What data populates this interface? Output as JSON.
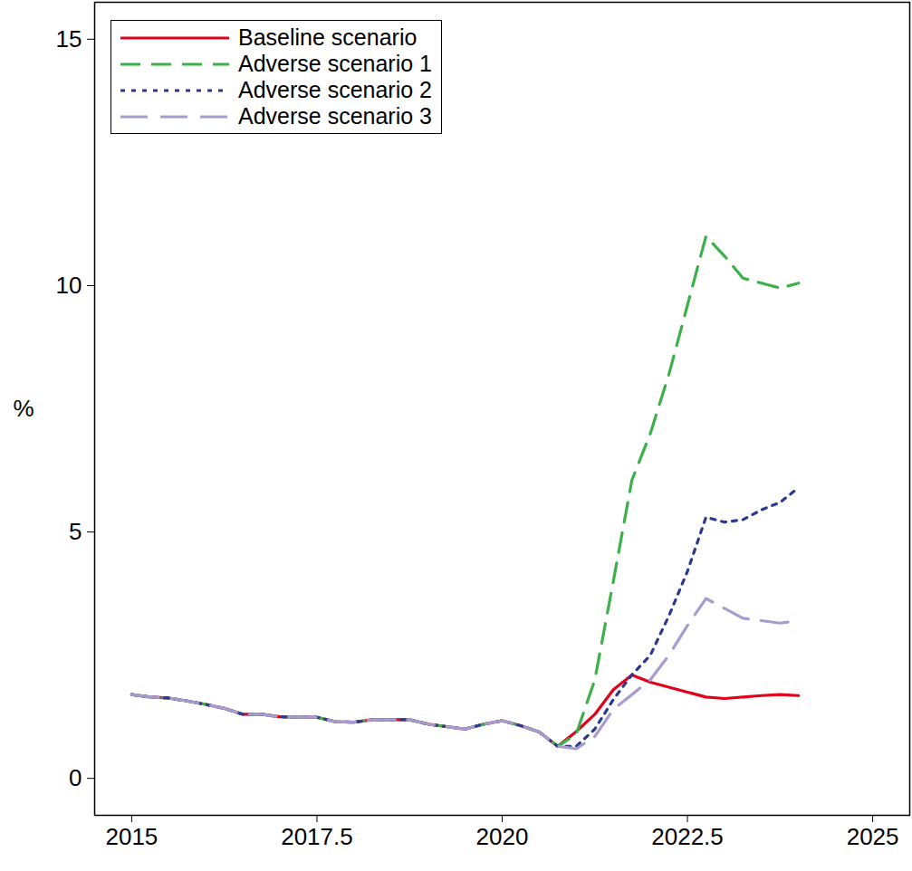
{
  "chart_data": {
    "type": "line",
    "y_label": "%",
    "x": [
      2015.0,
      2015.25,
      2015.5,
      2015.75,
      2016.0,
      2016.25,
      2016.5,
      2016.75,
      2017.0,
      2017.25,
      2017.5,
      2017.75,
      2018.0,
      2018.25,
      2018.5,
      2018.75,
      2019.0,
      2019.25,
      2019.5,
      2019.75,
      2020.0,
      2020.25,
      2020.5,
      2020.75,
      2021.0,
      2021.25,
      2021.5,
      2021.75,
      2022.0,
      2022.25,
      2022.5,
      2022.75,
      2023.0,
      2023.25,
      2023.5,
      2023.75,
      2024.0
    ],
    "series": [
      {
        "name": "Baseline scenario",
        "color": "#e3001b",
        "line_style": "solid",
        "values": [
          1.7,
          1.65,
          1.63,
          1.57,
          1.5,
          1.42,
          1.3,
          1.3,
          1.25,
          1.24,
          1.24,
          1.15,
          1.14,
          1.19,
          1.19,
          1.19,
          1.1,
          1.05,
          1.0,
          1.1,
          1.17,
          1.07,
          0.94,
          0.65,
          0.95,
          1.3,
          1.8,
          2.1,
          1.95,
          1.85,
          1.75,
          1.65,
          1.62,
          1.65,
          1.68,
          1.7,
          1.68
        ]
      },
      {
        "name": "Adverse scenario 1",
        "color": "#3cb04a",
        "line_style": "dashed",
        "values": [
          1.7,
          1.65,
          1.63,
          1.57,
          1.5,
          1.42,
          1.3,
          1.3,
          1.25,
          1.24,
          1.24,
          1.15,
          1.14,
          1.19,
          1.19,
          1.19,
          1.1,
          1.05,
          1.0,
          1.1,
          1.17,
          1.07,
          0.94,
          0.65,
          0.9,
          2.0,
          4.0,
          6.05,
          7.0,
          8.2,
          9.6,
          11.0,
          10.6,
          10.15,
          10.05,
          9.95,
          10.05
        ]
      },
      {
        "name": "Adverse scenario 2",
        "color": "#2b3990",
        "line_style": "dotted",
        "values": [
          1.7,
          1.65,
          1.63,
          1.57,
          1.5,
          1.42,
          1.3,
          1.3,
          1.25,
          1.24,
          1.24,
          1.15,
          1.14,
          1.19,
          1.19,
          1.19,
          1.1,
          1.05,
          1.0,
          1.1,
          1.17,
          1.07,
          0.94,
          0.65,
          0.65,
          1.0,
          1.6,
          2.1,
          2.5,
          3.3,
          4.2,
          5.3,
          5.2,
          5.25,
          5.45,
          5.6,
          5.9
        ]
      },
      {
        "name": "Adverse scenario 3",
        "color": "#a89bcf",
        "line_style": "longdash",
        "values": [
          1.7,
          1.65,
          1.63,
          1.57,
          1.5,
          1.42,
          1.3,
          1.3,
          1.25,
          1.24,
          1.24,
          1.15,
          1.14,
          1.19,
          1.19,
          1.19,
          1.1,
          1.05,
          1.0,
          1.1,
          1.17,
          1.07,
          0.94,
          0.65,
          0.6,
          0.85,
          1.4,
          1.7,
          2.0,
          2.5,
          3.1,
          3.65,
          3.45,
          3.25,
          3.2,
          3.15,
          3.2
        ]
      }
    ],
    "xlim": [
      2014.5,
      2025.5
    ],
    "ylim": [
      -0.75,
      15.75
    ],
    "xticks": [
      2015,
      2017.5,
      2020,
      2022.5,
      2025
    ],
    "yticks": [
      0,
      5,
      10,
      15
    ],
    "grid": false,
    "legend": "upper left"
  }
}
